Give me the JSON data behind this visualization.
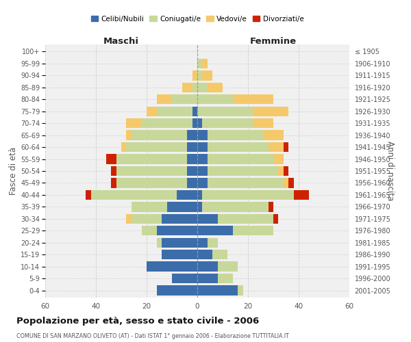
{
  "age_groups": [
    "0-4",
    "5-9",
    "10-14",
    "15-19",
    "20-24",
    "25-29",
    "30-34",
    "35-39",
    "40-44",
    "45-49",
    "50-54",
    "55-59",
    "60-64",
    "65-69",
    "70-74",
    "75-79",
    "80-84",
    "85-89",
    "90-94",
    "95-99",
    "100+"
  ],
  "birth_years": [
    "2001-2005",
    "1996-2000",
    "1991-1995",
    "1986-1990",
    "1981-1985",
    "1976-1980",
    "1971-1975",
    "1966-1970",
    "1961-1965",
    "1956-1960",
    "1951-1955",
    "1946-1950",
    "1941-1945",
    "1936-1940",
    "1931-1935",
    "1926-1930",
    "1921-1925",
    "1916-1920",
    "1911-1915",
    "1906-1910",
    "≤ 1905"
  ],
  "colors": {
    "celibe": "#3C6DAB",
    "coniugato": "#C8D89A",
    "vedovo": "#F5C96A",
    "divorziato": "#CC2200"
  },
  "maschi": {
    "celibe": [
      16,
      10,
      20,
      14,
      14,
      16,
      14,
      12,
      8,
      4,
      4,
      4,
      4,
      4,
      2,
      2,
      0,
      0,
      0,
      0,
      0
    ],
    "coniugato": [
      0,
      0,
      0,
      0,
      2,
      6,
      12,
      14,
      34,
      28,
      28,
      28,
      24,
      22,
      20,
      14,
      10,
      2,
      0,
      0,
      0
    ],
    "vedovo": [
      0,
      0,
      0,
      0,
      0,
      0,
      2,
      0,
      0,
      0,
      0,
      0,
      2,
      2,
      6,
      4,
      6,
      4,
      2,
      0,
      0
    ],
    "divorziato": [
      0,
      0,
      0,
      0,
      0,
      0,
      0,
      0,
      2,
      2,
      2,
      4,
      0,
      0,
      0,
      0,
      0,
      0,
      0,
      0,
      0
    ]
  },
  "femmine": {
    "nubile": [
      16,
      8,
      8,
      6,
      4,
      14,
      8,
      2,
      2,
      4,
      4,
      4,
      4,
      4,
      2,
      0,
      0,
      0,
      0,
      0,
      0
    ],
    "coniugata": [
      2,
      6,
      8,
      6,
      4,
      16,
      22,
      26,
      36,
      30,
      28,
      26,
      24,
      22,
      20,
      22,
      14,
      4,
      2,
      2,
      0
    ],
    "vedova": [
      0,
      0,
      0,
      0,
      0,
      0,
      0,
      0,
      0,
      2,
      2,
      4,
      6,
      8,
      8,
      14,
      16,
      6,
      4,
      2,
      0
    ],
    "divorziata": [
      0,
      0,
      0,
      0,
      0,
      0,
      2,
      2,
      6,
      2,
      2,
      0,
      2,
      0,
      0,
      0,
      0,
      0,
      0,
      0,
      0
    ]
  },
  "xlim": 60,
  "title": "Popolazione per età, sesso e stato civile - 2006",
  "subtitle": "COMUNE DI SAN MARZANO OLIVETO (AT) - Dati ISTAT 1° gennaio 2006 - Elaborazione TUTTITALIA.IT",
  "ylabel_left": "Fasce di età",
  "ylabel_right": "Anni di nascita",
  "header_left": "Maschi",
  "header_right": "Femmine",
  "legend_labels": [
    "Celibi/Nubili",
    "Coniugati/e",
    "Vedovi/e",
    "Divorziati/e"
  ],
  "bg_color": "#FFFFFF",
  "plot_bg": "#F0F0F0",
  "grid_color": "#CCCCCC"
}
